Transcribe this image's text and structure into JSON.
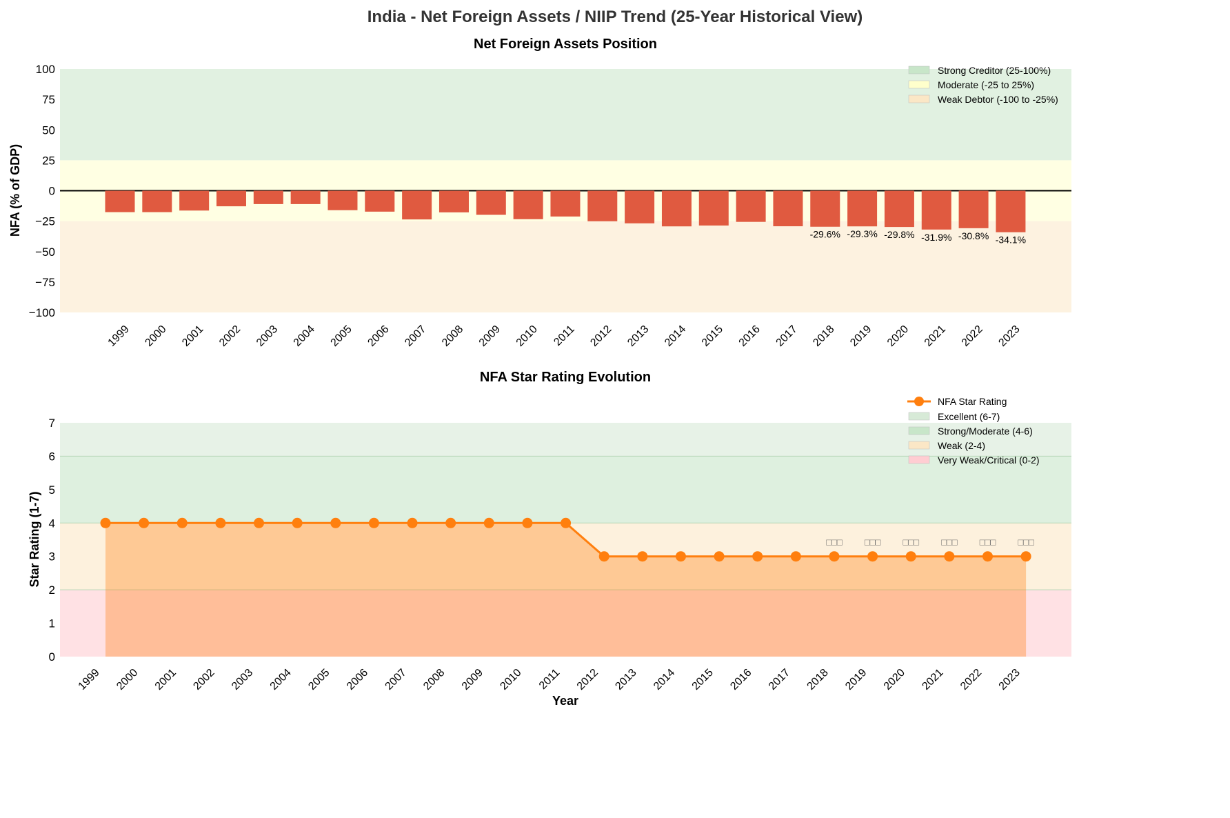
{
  "title": "India - Net Foreign Assets / NIIP Trend (25-Year Historical View)",
  "chart_data": [
    {
      "type": "bar",
      "title": "Net Foreign Assets Position",
      "ylabel": "NFA (% of GDP)",
      "xlabel": "",
      "ylim": [
        -100,
        100
      ],
      "yticks": [
        -100,
        -75,
        -50,
        -25,
        0,
        25,
        50,
        75,
        100
      ],
      "categories": [
        "1999",
        "2000",
        "2001",
        "2002",
        "2003",
        "2004",
        "2005",
        "2006",
        "2007",
        "2008",
        "2009",
        "2010",
        "2011",
        "2012",
        "2013",
        "2014",
        "2015",
        "2016",
        "2017",
        "2018",
        "2019",
        "2020",
        "2021",
        "2022",
        "2023"
      ],
      "values": [
        -17.6,
        -17.6,
        -16.3,
        -12.8,
        -11.0,
        -11.0,
        -16.0,
        -17.2,
        -23.6,
        -17.8,
        -19.8,
        -23.4,
        -21.2,
        -25.1,
        -26.8,
        -29.3,
        -28.6,
        -25.6,
        -29.2,
        -29.6,
        -29.3,
        -29.8,
        -31.9,
        -30.8,
        -34.1
      ],
      "data_labels": {
        "2018": "-29.6%",
        "2019": "-29.3%",
        "2020": "-29.8%",
        "2021": "-31.9%",
        "2022": "-30.8%",
        "2023": "-34.1%"
      },
      "bar_color": "#e05a40",
      "bands": [
        {
          "name": "Strong Creditor (25-100%)",
          "range": [
            25,
            100
          ],
          "color": "#c8e6c9"
        },
        {
          "name": "Moderate (-25 to 25%)",
          "range": [
            -25,
            25
          ],
          "color": "#ffffcc"
        },
        {
          "name": "Weak Debtor (-100 to -25%)",
          "range": [
            -100,
            -25
          ],
          "color": "#fbe7c6"
        }
      ],
      "legend": "top-right"
    },
    {
      "type": "line",
      "title": "NFA Star Rating Evolution",
      "ylabel": "Star Rating (1-7)",
      "xlabel": "Year",
      "ylim": [
        0,
        7
      ],
      "yticks": [
        0,
        1,
        2,
        3,
        4,
        5,
        6,
        7
      ],
      "x": [
        "1999",
        "2000",
        "2001",
        "2002",
        "2003",
        "2004",
        "2005",
        "2006",
        "2007",
        "2008",
        "2009",
        "2010",
        "2011",
        "2012",
        "2013",
        "2014",
        "2015",
        "2016",
        "2017",
        "2018",
        "2019",
        "2020",
        "2021",
        "2022",
        "2023"
      ],
      "series": [
        {
          "name": "NFA Star Rating",
          "values": [
            4,
            4,
            4,
            4,
            4,
            4,
            4,
            4,
            4,
            4,
            4,
            4,
            4,
            3,
            3,
            3,
            3,
            3,
            3,
            3,
            3,
            3,
            3,
            3,
            3
          ],
          "color": "#ff7f0e"
        }
      ],
      "point_labels": {
        "2018": "□□□",
        "2019": "□□□",
        "2020": "□□□",
        "2021": "□□□",
        "2022": "□□□",
        "2023": "□□□"
      },
      "bands": [
        {
          "name": "Excellent (6-7)",
          "range": [
            6,
            7
          ],
          "color": "#d7ead7"
        },
        {
          "name": "Strong/Moderate (4-6)",
          "range": [
            4,
            6
          ],
          "color": "#c8e6c9"
        },
        {
          "name": "Weak (2-4)",
          "range": [
            2,
            4
          ],
          "color": "#fbe7c6"
        },
        {
          "name": "Very Weak/Critical (0-2)",
          "range": [
            0,
            2
          ],
          "color": "#ffcdd2"
        }
      ],
      "legend": "top-right"
    }
  ]
}
